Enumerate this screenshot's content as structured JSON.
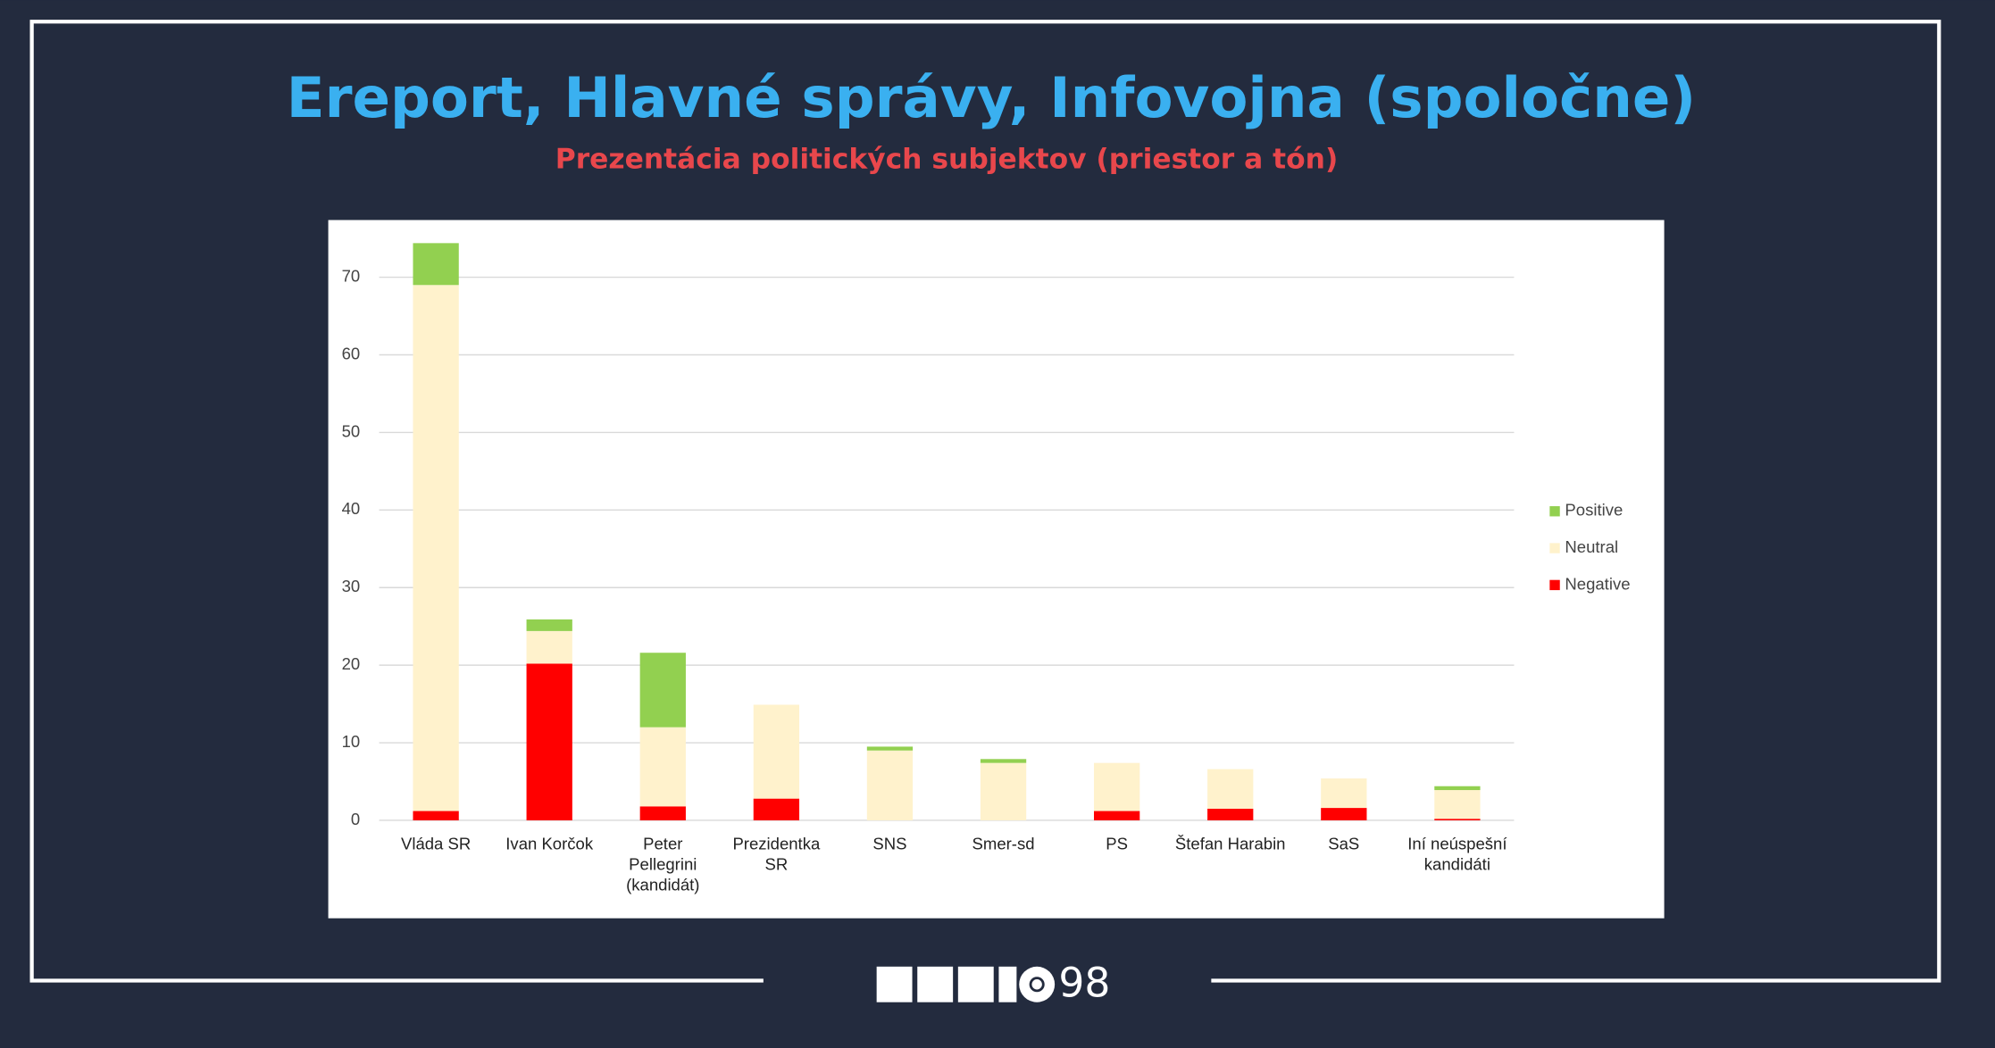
{
  "chart_data": {
    "type": "stacked_bar",
    "title": "Ereport, Hlavné správy, Infovojna (spoločne)",
    "subtitle": "Prezentácia politických subjektov (priestor a tón)",
    "categories": [
      "Vláda SR",
      "Ivan Korčok",
      "Peter Pellegrini (kandidát)",
      "Prezidentka SR",
      "SNS",
      "Smer-sd",
      "PS",
      "Štefan Harabin",
      "SaS",
      "Iní neúspešní kandidáti"
    ],
    "series": [
      {
        "name": "Negative",
        "color": "#ff0000",
        "values": [
          1.2,
          20.2,
          1.8,
          2.8,
          0,
          0,
          1.2,
          1.5,
          1.6,
          0.2
        ]
      },
      {
        "name": "Neutral",
        "color": "#fff2cc",
        "values": [
          67.8,
          4.2,
          10.2,
          12.1,
          9.0,
          7.4,
          6.2,
          5.1,
          3.8,
          3.7
        ]
      },
      {
        "name": "Positive",
        "color": "#92d050",
        "values": [
          5.4,
          1.5,
          9.6,
          0,
          0.5,
          0.5,
          0,
          0,
          0,
          0.5
        ]
      }
    ],
    "ylim": [
      0,
      75
    ],
    "yticks": [
      0,
      10,
      20,
      30,
      40,
      50,
      60,
      70
    ],
    "grid": true,
    "legend": "right"
  },
  "logo": {
    "text": "98"
  }
}
